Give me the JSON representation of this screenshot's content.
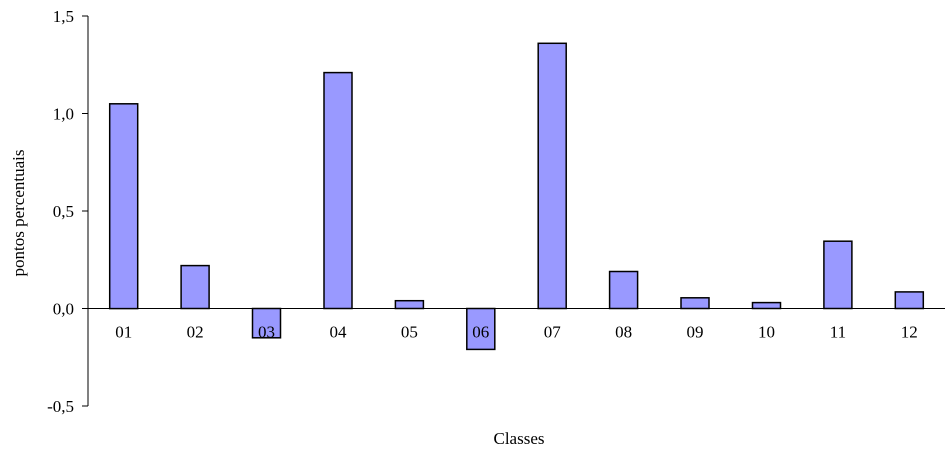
{
  "chart_data": {
    "type": "bar",
    "categories": [
      "01",
      "02",
      "03",
      "04",
      "05",
      "06",
      "07",
      "08",
      "09",
      "10",
      "11",
      "12"
    ],
    "values": [
      1.05,
      0.22,
      -0.15,
      1.21,
      0.04,
      -0.21,
      1.36,
      0.19,
      0.055,
      0.03,
      0.345,
      0.085
    ],
    "title": "",
    "xlabel": "Classes",
    "ylabel": "pontos percentuais",
    "ylim": [
      -0.5,
      1.5
    ],
    "yticks": [
      1.5,
      1.0,
      0.5,
      0.0,
      -0.5
    ],
    "ytick_labels": [
      "1,5",
      "1,0",
      "0,5",
      "0,0",
      "-0,5"
    ],
    "bar_color": "#9999ff",
    "bar_edge_color": "#000000",
    "grid": false,
    "legend": "none"
  }
}
